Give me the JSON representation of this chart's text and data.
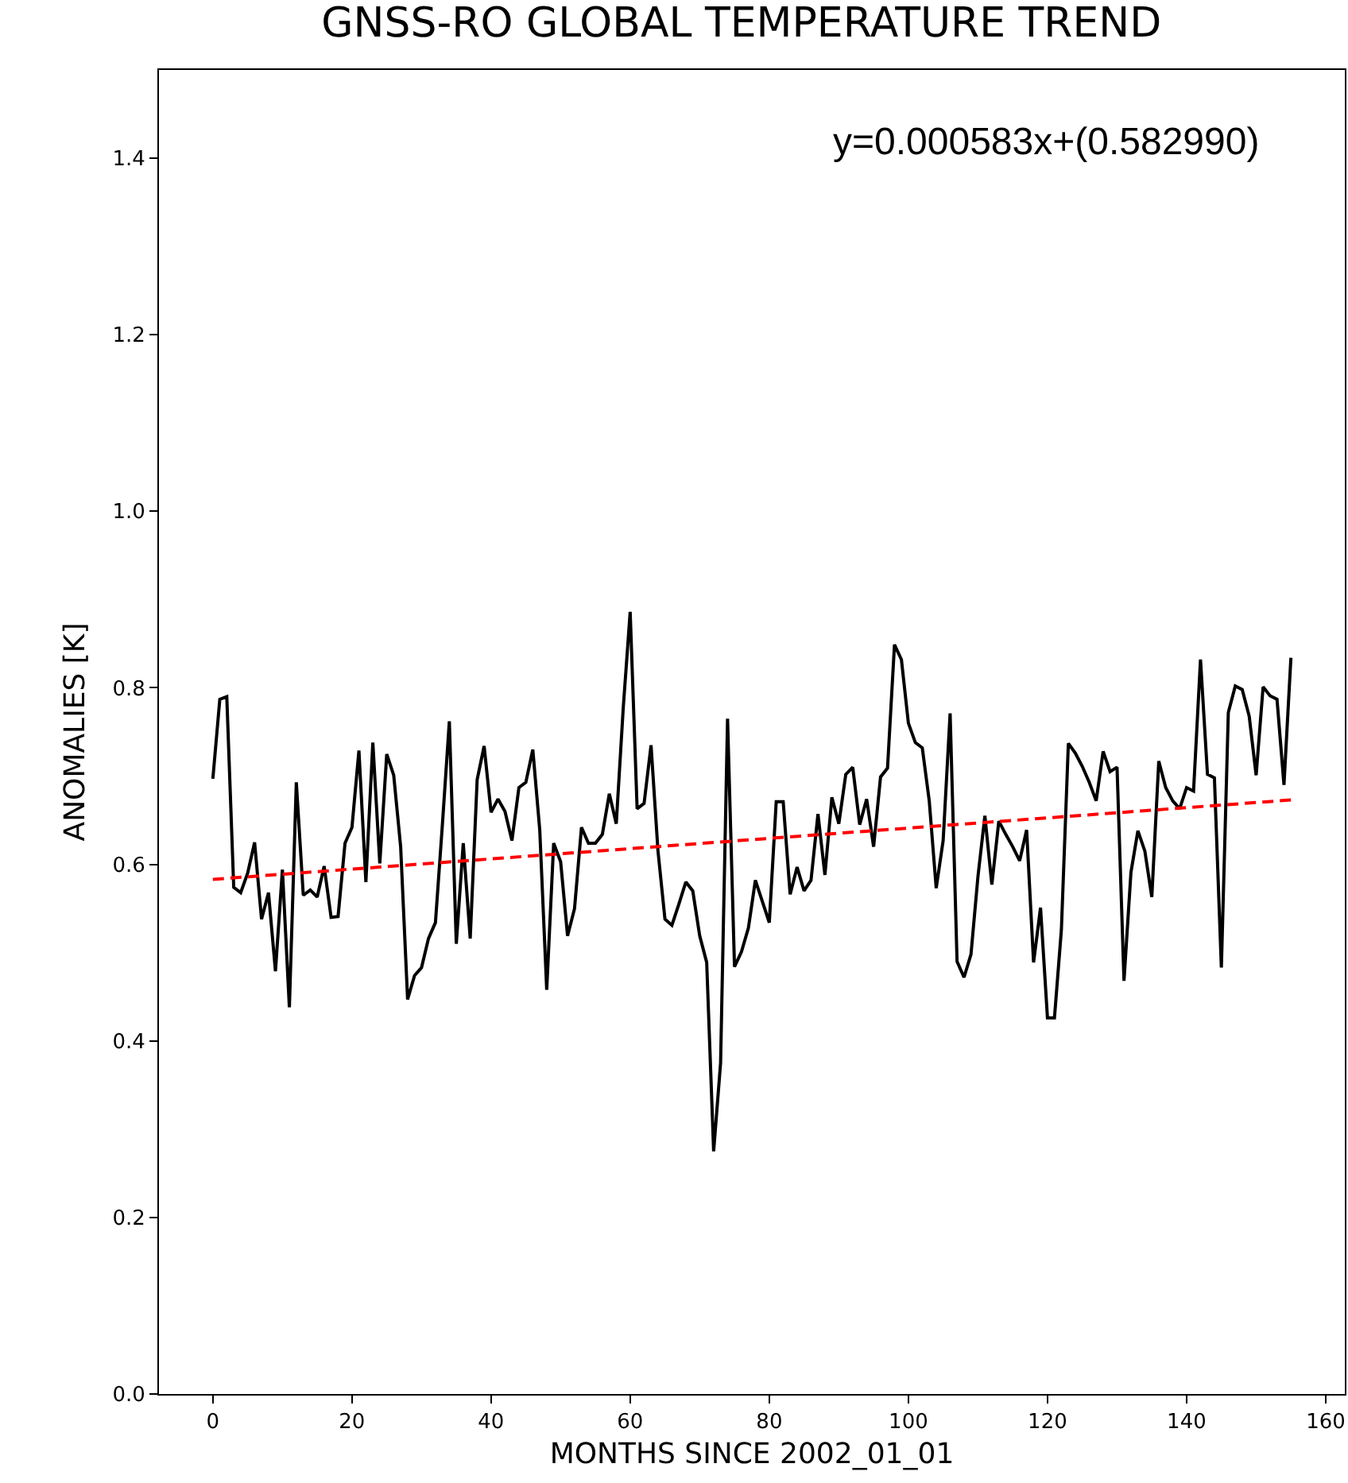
{
  "chart_data": {
    "type": "line",
    "title": "GNSS-RO GLOBAL TEMPERATURE TREND",
    "xlabel": "MONTHS SINCE 2002_01_01",
    "ylabel": "ANOMALIES [K]",
    "annotations": [
      "y=0.000583x+(0.582990)"
    ],
    "x": [
      0,
      1,
      2,
      3,
      4,
      5,
      6,
      7,
      8,
      9,
      10,
      11,
      12,
      13,
      14,
      15,
      16,
      17,
      18,
      19,
      20,
      21,
      22,
      23,
      24,
      25,
      26,
      27,
      28,
      29,
      30,
      31,
      32,
      33,
      34,
      35,
      36,
      37,
      38,
      39,
      40,
      41,
      42,
      43,
      44,
      45,
      46,
      47,
      48,
      49,
      50,
      51,
      52,
      53,
      54,
      55,
      56,
      57,
      58,
      59,
      60,
      61,
      62,
      63,
      64,
      65,
      66,
      67,
      68,
      69,
      70,
      71,
      72,
      73,
      74,
      75,
      76,
      77,
      78,
      79,
      80,
      81,
      82,
      83,
      84,
      85,
      86,
      87,
      88,
      89,
      90,
      91,
      92,
      93,
      94,
      95,
      96,
      97,
      98,
      99,
      100,
      101,
      102,
      103,
      104,
      105,
      106,
      107,
      108,
      109,
      110,
      111,
      112,
      113,
      114,
      115,
      116,
      117,
      118,
      119,
      120,
      121,
      122,
      123,
      124,
      125,
      126,
      127,
      128,
      129,
      130,
      131,
      132,
      133,
      134,
      135,
      136,
      137,
      138,
      139,
      140,
      141,
      142,
      143,
      144,
      145,
      146,
      147,
      148,
      149,
      150,
      151,
      152,
      153,
      154,
      155
    ],
    "series": [
      {
        "color": "#000000",
        "values": [
          0.697,
          0.787,
          0.79,
          0.574,
          0.568,
          0.59,
          0.625,
          0.538,
          0.568,
          0.479,
          0.594,
          0.438,
          0.693,
          0.565,
          0.571,
          0.563,
          0.598,
          0.54,
          0.541,
          0.624,
          0.642,
          0.729,
          0.58,
          0.738,
          0.601,
          0.725,
          0.701,
          0.62,
          0.447,
          0.474,
          0.483,
          0.516,
          0.534,
          0.645,
          0.762,
          0.51,
          0.624,
          0.516,
          0.696,
          0.734,
          0.659,
          0.674,
          0.66,
          0.627,
          0.687,
          0.693,
          0.73,
          0.639,
          0.458,
          0.624,
          0.603,
          0.519,
          0.55,
          0.642,
          0.624,
          0.624,
          0.634,
          0.68,
          0.646,
          0.777,
          0.886,
          0.663,
          0.669,
          0.735,
          0.615,
          0.538,
          0.531,
          0.555,
          0.58,
          0.57,
          0.519,
          0.489,
          0.275,
          0.375,
          0.765,
          0.484,
          0.501,
          0.528,
          0.582,
          0.558,
          0.534,
          0.671,
          0.671,
          0.566,
          0.597,
          0.57,
          0.582,
          0.657,
          0.588,
          0.676,
          0.646,
          0.702,
          0.71,
          0.645,
          0.674,
          0.62,
          0.699,
          0.709,
          0.849,
          0.832,
          0.76,
          0.738,
          0.732,
          0.672,
          0.573,
          0.627,
          0.771,
          0.49,
          0.472,
          0.498,
          0.586,
          0.655,
          0.577,
          0.649,
          0.634,
          0.62,
          0.604,
          0.639,
          0.489,
          0.551,
          0.426,
          0.426,
          0.526,
          0.737,
          0.726,
          0.711,
          0.693,
          0.672,
          0.728,
          0.705,
          0.71,
          0.468,
          0.591,
          0.638,
          0.615,
          0.563,
          0.717,
          0.687,
          0.672,
          0.663,
          0.687,
          0.683,
          0.832,
          0.702,
          0.698,
          0.483,
          0.772,
          0.802,
          0.798,
          0.768,
          0.701,
          0.801,
          0.791,
          0.787,
          0.69,
          0.834
        ]
      },
      {
        "type": "line",
        "color": "#ff0000",
        "line_style": "dashed",
        "x": [
          0,
          155
        ],
        "values": [
          0.583,
          0.673
        ]
      }
    ],
    "xlim": [
      -7.75,
      162.75
    ],
    "xticks": [
      0,
      20,
      40,
      60,
      80,
      100,
      120,
      140,
      160
    ],
    "ylim": [
      0,
      1.5
    ],
    "yticks": [
      {
        "value": 0,
        "label": "0.0"
      },
      {
        "value": 0.2,
        "label": "0.2"
      },
      {
        "value": 0.4,
        "label": "0.4"
      },
      {
        "value": 0.6,
        "label": "0.6"
      },
      {
        "value": 0.8,
        "label": "0.8"
      },
      {
        "value": 1,
        "label": "1.0"
      },
      {
        "value": 1.2,
        "label": "1.2"
      },
      {
        "value": 1.4,
        "label": "1.4"
      }
    ],
    "grid": false
  }
}
